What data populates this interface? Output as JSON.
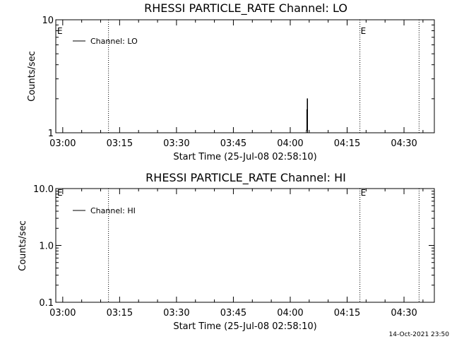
{
  "footer_timestamp": "14-Oct-2021 23:50",
  "chart_data": [
    {
      "type": "line",
      "title": "RHESSI PARTICLE_RATE Channel: LO",
      "xlabel": "Start Time (25-Jul-08 02:58:10)",
      "ylabel": "Counts/sec",
      "y_scale": "log",
      "ylim": [
        1,
        10
      ],
      "y_tick_values": [
        1,
        10
      ],
      "y_tick_labels": [
        "1",
        "10"
      ],
      "x_unit": "minutes after 02:58:10",
      "xlim": [
        0,
        99.83
      ],
      "x_tick_values": [
        1.83,
        16.83,
        31.83,
        46.83,
        61.83,
        76.83,
        91.83
      ],
      "x_tick_labels": [
        "03:00",
        "03:15",
        "03:30",
        "03:45",
        "04:00",
        "04:15",
        "04:30"
      ],
      "legend": {
        "placement": "top-left",
        "entries": [
          "Channel: LO"
        ]
      },
      "vertical_lines": [
        {
          "x": 13.9,
          "style": "dotted"
        },
        {
          "x": 80.2,
          "style": "dotted",
          "flag": "E"
        },
        {
          "x": 95.8,
          "style": "dotted"
        }
      ],
      "left_flag": "E",
      "series": [
        {
          "name": "Channel: LO",
          "x": [
            66.1,
            66.1,
            66.2,
            66.2,
            66.3,
            66.3,
            66.4,
            66.4
          ],
          "y": [
            1.0,
            1.05,
            1.05,
            1.6,
            1.6,
            2.0,
            2.0,
            1.0
          ]
        }
      ],
      "grid": false
    },
    {
      "type": "line",
      "title": "RHESSI PARTICLE_RATE Channel: HI",
      "xlabel": "Start Time (25-Jul-08 02:58:10)",
      "ylabel": "Counts/sec",
      "y_scale": "log",
      "ylim": [
        0.1,
        10
      ],
      "y_tick_values": [
        0.1,
        1,
        10
      ],
      "y_tick_labels": [
        "0.1",
        "1.0",
        "10.0"
      ],
      "x_unit": "minutes after 02:58:10",
      "xlim": [
        0,
        99.83
      ],
      "x_tick_values": [
        1.83,
        16.83,
        31.83,
        46.83,
        61.83,
        76.83,
        91.83
      ],
      "x_tick_labels": [
        "03:00",
        "03:15",
        "03:30",
        "03:45",
        "04:00",
        "04:15",
        "04:30"
      ],
      "legend": {
        "placement": "top-left",
        "entries": [
          "Channel: HI"
        ]
      },
      "vertical_lines": [
        {
          "x": 13.9,
          "style": "dotted"
        },
        {
          "x": 80.2,
          "style": "dotted",
          "flag": "E"
        },
        {
          "x": 95.8,
          "style": "dotted"
        }
      ],
      "left_flag": "E",
      "series": [
        {
          "name": "Channel: HI",
          "x": [],
          "y": []
        }
      ],
      "grid": false
    }
  ]
}
